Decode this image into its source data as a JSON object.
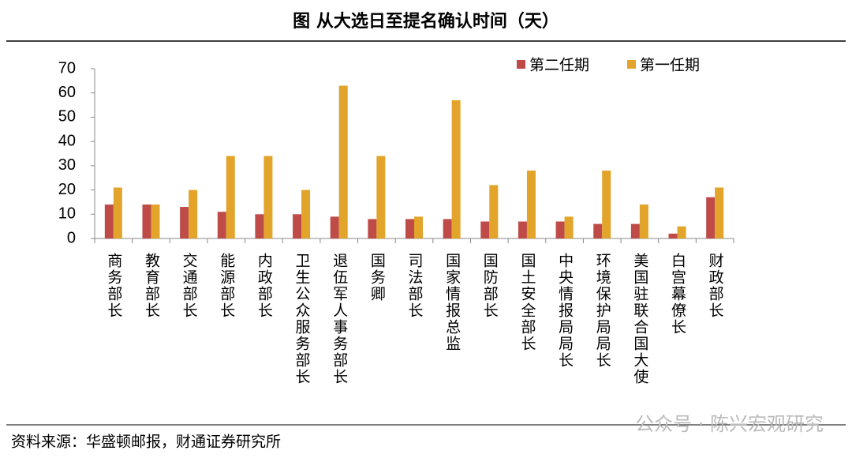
{
  "chart_data": {
    "type": "bar",
    "title": "图  从大选日至提名确认时间（天）",
    "source": "资料来源：华盛顿邮报，财通证券研究所",
    "watermark": "公众号 · 陈兴宏观研究",
    "categories": [
      "商务部长",
      "教育部长",
      "交通部长",
      "能源部长",
      "内政部长",
      "卫生公众服务部长",
      "退伍军人事务部长",
      "国务卿",
      "司法部长",
      "国家情报总监",
      "国防部长",
      "国土安全部长",
      "中央情报局局长",
      "环境保护局局长",
      "美国驻联合国大使",
      "白宫幕僚长",
      "财政部长"
    ],
    "series": [
      {
        "name": "第二任期",
        "color": "#be4b48",
        "values": [
          14,
          14,
          13,
          11,
          10,
          10,
          9,
          8,
          8,
          8,
          7,
          7,
          7,
          6,
          6,
          2,
          17
        ]
      },
      {
        "name": "第一任期",
        "color": "#e2a42a",
        "values": [
          21,
          14,
          20,
          34,
          34,
          20,
          63,
          34,
          9,
          57,
          22,
          28,
          9,
          28,
          14,
          5,
          21
        ]
      }
    ],
    "ylim": [
      0,
      70
    ],
    "yticks": [
      0,
      10,
      20,
      30,
      40,
      50,
      60,
      70
    ],
    "legend": "top-right"
  }
}
